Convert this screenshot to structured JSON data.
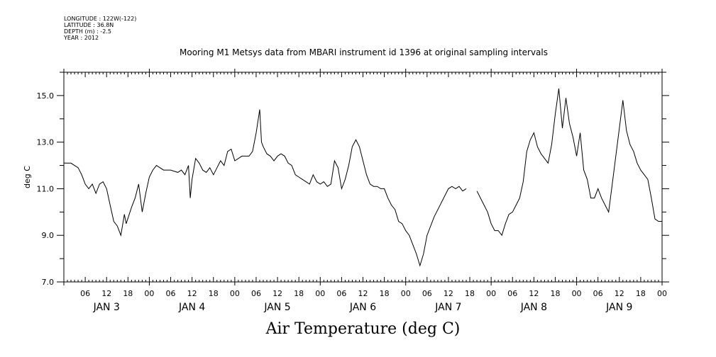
{
  "header": {
    "longitude": "LONGITUDE : 122W(-122)",
    "latitude": "LATITUDE : 36.8N",
    "depth": "DEPTH (m) : -2.5",
    "year": "YEAR : 2012"
  },
  "chart_data": {
    "type": "line",
    "title": "Mooring M1 Metsys data from MBARI instrument id 1396 at original sampling intervals",
    "caption": "Air Temperature (deg C)",
    "ylabel": "deg C",
    "ylim": [
      7.0,
      16.0
    ],
    "yticks": [
      "7.0",
      "9.0",
      "11.0",
      "13.0",
      "15.0"
    ],
    "xlabel": "",
    "x_unit": "hours from 00:00 JAN 3 2012",
    "xlim": [
      0,
      168
    ],
    "x_tick_labels": [
      "06",
      "12",
      "18",
      "00",
      "06",
      "12",
      "18",
      "00",
      "06",
      "12",
      "18",
      "00",
      "06",
      "12",
      "18",
      "00",
      "06",
      "12",
      "18",
      "00",
      "06",
      "12",
      "18",
      "00",
      "06",
      "12",
      "18",
      "00"
    ],
    "day_labels": [
      "JAN  3",
      "JAN  4",
      "JAN  5",
      "JAN  6",
      "JAN  7",
      "JAN  8",
      "JAN  9"
    ],
    "grid": false,
    "series": [
      {
        "segments": [
          [
            [
              0,
              12.1
            ],
            [
              2,
              12.1
            ],
            [
              4,
              11.9
            ],
            [
              5,
              11.6
            ],
            [
              6,
              11.2
            ],
            [
              7,
              11.0
            ],
            [
              8,
              11.2
            ],
            [
              9,
              10.8
            ],
            [
              10,
              11.2
            ],
            [
              11,
              11.3
            ],
            [
              12,
              11.0
            ],
            [
              13,
              10.3
            ],
            [
              14,
              9.6
            ],
            [
              15,
              9.4
            ],
            [
              16,
              9.0
            ],
            [
              17,
              9.9
            ],
            [
              17.5,
              9.5
            ],
            [
              19,
              10.2
            ],
            [
              20,
              10.6
            ],
            [
              21,
              11.2
            ],
            [
              22,
              10.0
            ],
            [
              23,
              10.8
            ],
            [
              24,
              11.5
            ],
            [
              25,
              11.8
            ],
            [
              26,
              12.0
            ],
            [
              28,
              11.8
            ],
            [
              30,
              11.8
            ],
            [
              32,
              11.7
            ],
            [
              33,
              11.8
            ],
            [
              34,
              11.6
            ],
            [
              35,
              12.0
            ],
            [
              35.5,
              10.6
            ],
            [
              36,
              11.4
            ],
            [
              37,
              12.3
            ],
            [
              38,
              12.1
            ],
            [
              39,
              11.8
            ],
            [
              40,
              11.7
            ],
            [
              41,
              11.9
            ],
            [
              42,
              11.6
            ],
            [
              43,
              11.9
            ],
            [
              44,
              12.2
            ],
            [
              45,
              12.0
            ],
            [
              46,
              12.6
            ],
            [
              47,
              12.7
            ],
            [
              48,
              12.2
            ],
            [
              50,
              12.4
            ],
            [
              52,
              12.4
            ],
            [
              53,
              12.6
            ],
            [
              54,
              13.4
            ],
            [
              55,
              14.4
            ],
            [
              55.5,
              13.0
            ],
            [
              56,
              12.8
            ],
            [
              57,
              12.5
            ],
            [
              58,
              12.4
            ],
            [
              59,
              12.2
            ],
            [
              60,
              12.4
            ],
            [
              61,
              12.5
            ],
            [
              62,
              12.4
            ],
            [
              63,
              12.1
            ],
            [
              64,
              12.0
            ],
            [
              65,
              11.6
            ],
            [
              66,
              11.5
            ],
            [
              67,
              11.4
            ],
            [
              68,
              11.3
            ],
            [
              69,
              11.2
            ],
            [
              70,
              11.6
            ],
            [
              71,
              11.3
            ],
            [
              72,
              11.2
            ],
            [
              73,
              11.3
            ],
            [
              74,
              11.1
            ],
            [
              75,
              11.2
            ],
            [
              76,
              12.2
            ],
            [
              77,
              11.9
            ],
            [
              78,
              11.0
            ],
            [
              79,
              11.4
            ],
            [
              80,
              12.0
            ],
            [
              81,
              12.8
            ],
            [
              82,
              13.1
            ],
            [
              83,
              12.8
            ],
            [
              84,
              12.2
            ],
            [
              85,
              11.6
            ],
            [
              86,
              11.2
            ],
            [
              87,
              11.1
            ],
            [
              88,
              11.1
            ],
            [
              89,
              11.0
            ],
            [
              90,
              11.0
            ],
            [
              91,
              10.6
            ],
            [
              92,
              10.3
            ],
            [
              93,
              10.1
            ],
            [
              94,
              9.6
            ],
            [
              95,
              9.5
            ],
            [
              96,
              9.2
            ],
            [
              97,
              9.0
            ],
            [
              98,
              8.6
            ],
            [
              99,
              8.2
            ],
            [
              100,
              7.7
            ],
            [
              101,
              8.2
            ],
            [
              102,
              9.0
            ],
            [
              104,
              9.8
            ],
            [
              106,
              10.4
            ],
            [
              108,
              11.0
            ],
            [
              109,
              11.1
            ],
            [
              110,
              11.0
            ],
            [
              111,
              11.1
            ],
            [
              112,
              10.9
            ],
            [
              113,
              11.0
            ]
          ],
          [
            [
              116,
              10.9
            ],
            [
              117,
              10.6
            ],
            [
              118,
              10.3
            ],
            [
              119,
              10.0
            ],
            [
              120,
              9.5
            ],
            [
              121,
              9.2
            ],
            [
              122,
              9.2
            ],
            [
              123,
              9.0
            ],
            [
              124,
              9.5
            ],
            [
              125,
              9.9
            ],
            [
              126,
              10.0
            ],
            [
              127,
              10.3
            ],
            [
              128,
              10.6
            ],
            [
              129,
              11.3
            ],
            [
              130,
              12.6
            ],
            [
              131,
              13.1
            ],
            [
              132,
              13.4
            ],
            [
              133,
              12.8
            ],
            [
              134,
              12.5
            ],
            [
              135,
              12.3
            ],
            [
              136,
              12.1
            ],
            [
              137,
              12.9
            ],
            [
              138,
              14.2
            ],
            [
              139,
              15.3
            ],
            [
              140,
              13.6
            ],
            [
              141,
              14.9
            ],
            [
              142,
              13.8
            ],
            [
              143,
              13.2
            ],
            [
              144,
              12.4
            ],
            [
              145,
              13.4
            ],
            [
              146,
              11.8
            ],
            [
              147,
              11.4
            ],
            [
              148,
              10.6
            ],
            [
              149,
              10.6
            ],
            [
              150,
              11.0
            ],
            [
              151,
              10.6
            ],
            [
              152,
              10.3
            ],
            [
              153,
              10.0
            ],
            [
              154,
              11.2
            ],
            [
              155,
              12.4
            ],
            [
              156,
              13.6
            ],
            [
              157,
              14.8
            ],
            [
              158,
              13.5
            ],
            [
              159,
              12.9
            ],
            [
              160,
              12.6
            ],
            [
              161,
              12.1
            ],
            [
              162,
              11.8
            ],
            [
              163,
              11.6
            ],
            [
              164,
              11.4
            ],
            [
              165,
              10.6
            ],
            [
              166,
              9.7
            ],
            [
              167,
              9.6
            ],
            [
              168,
              9.6
            ]
          ]
        ]
      }
    ]
  }
}
